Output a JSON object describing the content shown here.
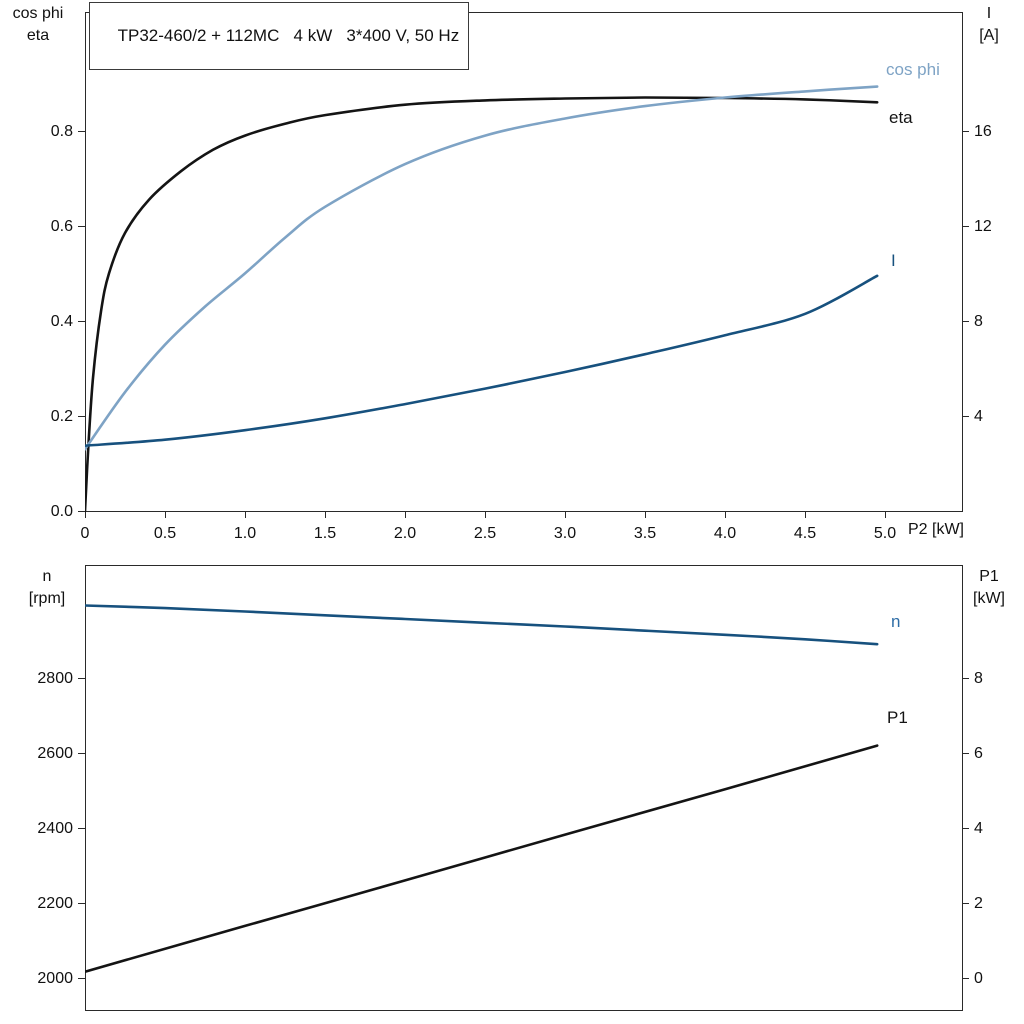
{
  "title_box": {
    "text": "TP32-460/2 + 112MC   4 kW   3*400 V, 50 Hz"
  },
  "axis_corner_labels": {
    "top_left_line1": "cos phi",
    "top_left_line2": "eta",
    "top_right_line1": "I",
    "top_right_line2": "[A]",
    "bottom_left_line1": "n",
    "bottom_left_line2": "[rpm]",
    "bottom_right_line1": "P1",
    "bottom_right_line2": "[kW]",
    "x_axis_label": "P2 [kW]"
  },
  "curve_labels": {
    "cos_phi": "cos phi",
    "eta": "eta",
    "i": "I",
    "n": "n",
    "p1": "P1"
  },
  "colors": {
    "black": "#141414",
    "light_blue": "#7ea3c5",
    "dark_blue": "#17517e",
    "label_blue": "#2e6da6",
    "axis": "#2a2a2a"
  },
  "chart_data": [
    {
      "type": "line",
      "title": "TP32-460/2 + 112MC   4 kW   3*400 V, 50 Hz",
      "xlabel": "P2 [kW]",
      "ylabel_left": "cos phi / eta",
      "ylabel_right": "I [A]",
      "xlim": [
        0,
        5.48
      ],
      "ylim_left": [
        0,
        1.05
      ],
      "ylim_right": [
        0,
        21
      ],
      "grid": false,
      "legend_position": "right-of-curves",
      "xticks": [
        0,
        0.5,
        1.0,
        1.5,
        2.0,
        2.5,
        3.0,
        3.5,
        4.0,
        4.5,
        5.0
      ],
      "xtick_labels": [
        "0",
        "0.5",
        "1.0",
        "1.5",
        "2.0",
        "2.5",
        "3.0",
        "3.5",
        "4.0",
        "4.5",
        "5.0"
      ],
      "yticks_left": [
        0.0,
        0.2,
        0.4,
        0.6,
        0.8
      ],
      "ytick_labels_left": [
        "0.0",
        "0.2",
        "0.4",
        "0.6",
        "0.8"
      ],
      "yticks_right": [
        4,
        8,
        12,
        16
      ],
      "ytick_labels_right": [
        "4",
        "8",
        "12",
        "16"
      ],
      "series": [
        {
          "name": "eta",
          "axis": "left",
          "color_key": "black",
          "x": [
            0,
            0.02,
            0.05,
            0.1,
            0.15,
            0.25,
            0.4,
            0.6,
            0.8,
            1.0,
            1.25,
            1.5,
            2.0,
            2.5,
            3.0,
            3.5,
            4.0,
            4.5,
            4.95
          ],
          "y": [
            0,
            0.13,
            0.28,
            0.42,
            0.5,
            0.585,
            0.655,
            0.715,
            0.76,
            0.79,
            0.815,
            0.833,
            0.855,
            0.864,
            0.868,
            0.87,
            0.869,
            0.866,
            0.86
          ]
        },
        {
          "name": "cos phi",
          "axis": "left",
          "color_key": "light_blue",
          "x": [
            0,
            0.25,
            0.5,
            0.75,
            1.0,
            1.25,
            1.5,
            2.0,
            2.5,
            3.0,
            3.5,
            4.0,
            4.5,
            4.95
          ],
          "y": [
            0.13,
            0.25,
            0.35,
            0.43,
            0.5,
            0.575,
            0.64,
            0.73,
            0.79,
            0.826,
            0.852,
            0.87,
            0.883,
            0.893
          ]
        },
        {
          "name": "I",
          "axis": "right",
          "color_key": "dark_blue",
          "x": [
            0,
            0.5,
            1.0,
            1.5,
            2.0,
            2.5,
            3.0,
            3.5,
            4.0,
            4.5,
            4.95
          ],
          "y": [
            2.75,
            3.0,
            3.4,
            3.9,
            4.5,
            5.15,
            5.85,
            6.6,
            7.4,
            8.3,
            9.9
          ]
        }
      ]
    },
    {
      "type": "line",
      "title": "",
      "xlabel": "",
      "ylabel_left": "n [rpm]",
      "ylabel_right": "P1 [kW]",
      "xlim": [
        0,
        5.48
      ],
      "ylim_left": [
        1915,
        3101
      ],
      "ylim_right": [
        -0.85,
        11.0
      ],
      "grid": false,
      "legend_position": "right-of-curves",
      "xticks": [],
      "xtick_labels": [],
      "yticks_left": [
        2000,
        2200,
        2400,
        2600,
        2800
      ],
      "ytick_labels_left": [
        "2000",
        "2200",
        "2400",
        "2600",
        "2800"
      ],
      "yticks_right": [
        0,
        2,
        4,
        6,
        8
      ],
      "ytick_labels_right": [
        "0",
        "2",
        "4",
        "6",
        "8"
      ],
      "series": [
        {
          "name": "n",
          "axis": "left",
          "color_key": "dark_blue",
          "x": [
            0,
            0.5,
            1.0,
            1.5,
            2.0,
            2.5,
            3.0,
            3.5,
            4.0,
            4.5,
            4.95
          ],
          "y": [
            2993,
            2986,
            2977,
            2967,
            2957,
            2947,
            2937,
            2926,
            2915,
            2903,
            2890
          ]
        },
        {
          "name": "P1",
          "axis": "right",
          "color_key": "black",
          "x": [
            0,
            1.0,
            2.0,
            3.0,
            4.0,
            4.95
          ],
          "y": [
            0.17,
            1.39,
            2.6,
            3.82,
            5.03,
            6.19
          ]
        }
      ]
    }
  ]
}
